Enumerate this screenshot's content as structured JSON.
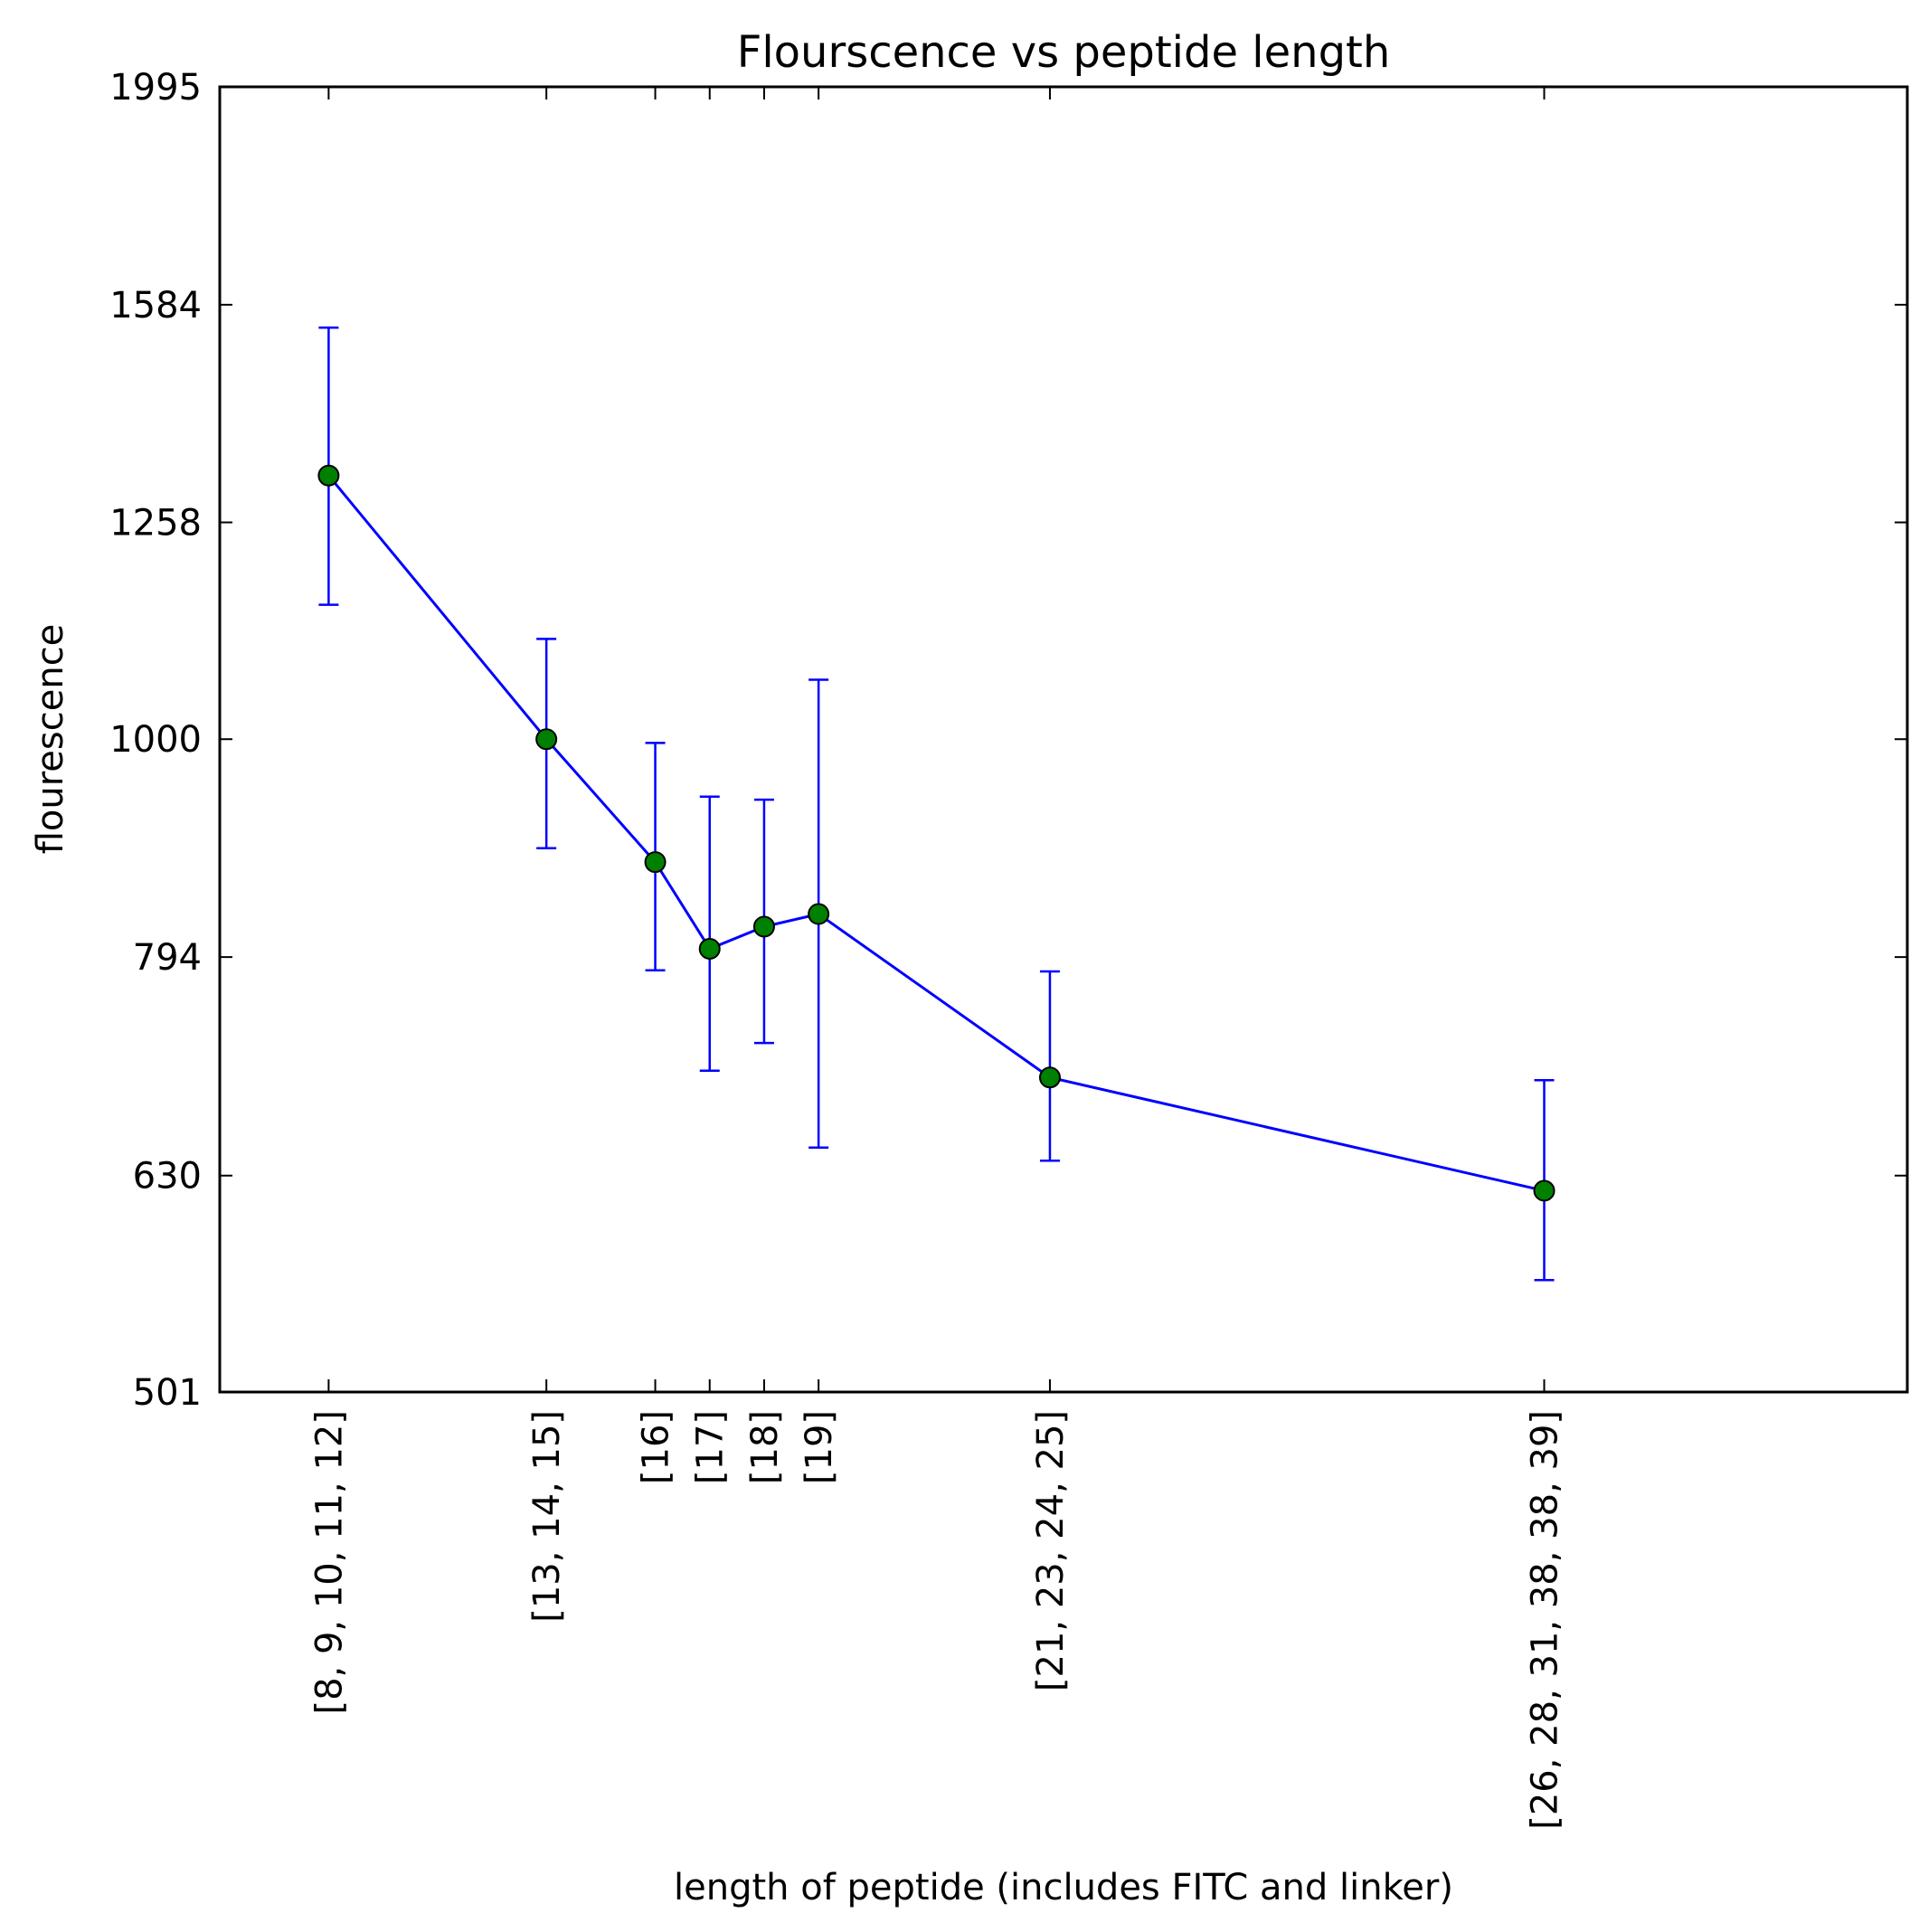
{
  "chart_data": {
    "type": "line",
    "title": "Flourscence vs peptide length",
    "xlabel": "length of peptide (includes FITC and linker)",
    "ylabel": "flourescence",
    "y_scale": "log",
    "ylim": [
      501,
      1995
    ],
    "y_ticks": [
      501,
      630,
      794,
      1000,
      1258,
      1584,
      1995
    ],
    "y_tick_labels": [
      "501",
      "630",
      "794",
      "1000",
      "1258",
      "1584",
      "1995"
    ],
    "x_ticks": [
      10,
      14,
      16,
      17,
      18,
      19,
      23.25,
      32.33
    ],
    "xlim": [
      8,
      39
    ],
    "grid": false,
    "categories": [
      "[8, 9, 10, 11, 12]",
      "[13, 14, 15]",
      "[16]",
      "[17]",
      "[18]",
      "[19]",
      "[21, 23, 24, 25]",
      "[26, 28, 31, 38, 38, 39]"
    ],
    "series": [
      {
        "x": [
          10,
          14,
          16,
          17,
          18,
          19,
          23.25,
          32.33
        ],
        "values": [
          1322,
          1000,
          878,
          801,
          820,
          831,
          699,
          620
        ],
        "err_low": [
          1153,
          891,
          783,
          704,
          725,
          649,
          640,
          564
        ],
        "err_high": [
          1546,
          1112,
          996,
          941,
          938,
          1065,
          782,
          697
        ]
      }
    ],
    "colors": {
      "line": "#0000ff",
      "errorbar": "#0000ff",
      "marker_fill": "#008000",
      "marker_edge": "#000000"
    },
    "marker": "circle"
  }
}
